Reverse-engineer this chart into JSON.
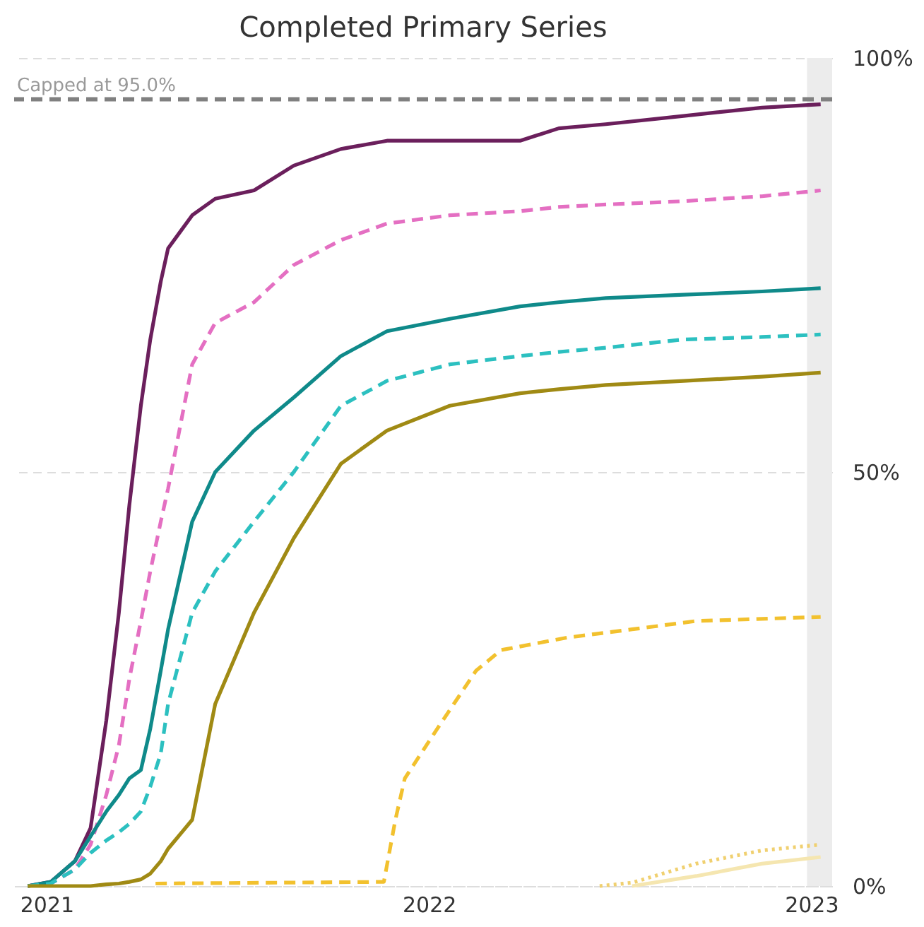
{
  "chart_data": {
    "type": "line",
    "title": "Completed Primary Series",
    "xlim": [
      "2020-12-01",
      "2023-01-21"
    ],
    "xticks": [
      {
        "value": "2021-01-01",
        "label": "2021"
      },
      {
        "value": "2022-01-01",
        "label": "2022"
      },
      {
        "value": "2023-01-01",
        "label": "2023"
      }
    ],
    "ylim": [
      0,
      100
    ],
    "yticks": [
      {
        "value": 0,
        "label": "0%"
      },
      {
        "value": 50,
        "label": "50%"
      },
      {
        "value": 100,
        "label": "100%"
      }
    ],
    "grid": "y",
    "x": [
      "2020-12-14",
      "2021-01-05",
      "2021-01-28",
      "2021-02-12",
      "2021-02-27",
      "2021-03-11",
      "2021-03-21",
      "2021-04-01",
      "2021-04-10",
      "2021-04-20",
      "2021-04-27",
      "2021-05-20",
      "2021-06-11",
      "2021-07-18",
      "2021-08-25",
      "2021-10-09",
      "2021-11-22",
      "2022-01-21",
      "2022-03-29",
      "2022-05-05",
      "2022-06-19",
      "2022-09-01",
      "2022-11-15",
      "2023-01-10"
    ],
    "series": [
      {
        "color": "#6b1f5c",
        "line_style": "solid",
        "values": [
          0,
          0.5,
          3,
          7,
          20,
          33,
          46,
          58,
          66,
          73,
          77,
          81,
          83,
          84,
          87,
          89,
          90,
          90,
          90,
          91.5,
          92,
          93,
          94,
          94.4
        ]
      },
      {
        "color": "#e46fc2",
        "line_style": "dashed",
        "values": [
          0,
          0.3,
          2,
          5,
          11,
          17,
          25,
          32,
          38,
          44,
          48,
          63,
          68,
          70.5,
          75,
          78,
          80,
          81,
          81.5,
          82,
          82.3,
          82.7,
          83.3,
          84
        ]
      },
      {
        "color": "#0f8a8a",
        "line_style": "solid",
        "values": [
          0,
          0.5,
          3,
          6,
          9,
          11,
          13,
          14,
          19,
          26,
          31,
          44,
          50,
          55,
          59,
          64,
          67,
          68.5,
          70,
          70.5,
          71,
          71.4,
          71.8,
          72.2
        ]
      },
      {
        "color": "#2cc0c0",
        "line_style": "dashed",
        "values": [
          0,
          0.3,
          2,
          4,
          5.5,
          6.5,
          7.5,
          9,
          12,
          16,
          22,
          33,
          38,
          44,
          50,
          58,
          61,
          63,
          64,
          64.5,
          65,
          66,
          66.3,
          66.6
        ]
      },
      {
        "color": "#a08a14",
        "line_style": "solid",
        "values": [
          0,
          0,
          0,
          0,
          0.2,
          0.3,
          0.5,
          0.8,
          1.5,
          3,
          4.5,
          8,
          22,
          33,
          42,
          51,
          55,
          58,
          59.5,
          60,
          60.5,
          61,
          61.5,
          62
        ]
      },
      {
        "color": "#f2c12e",
        "line_style": "dashed",
        "x": [
          "2021-04-15",
          "2021-11-19",
          "2021-11-30",
          "2021-12-09",
          "2022-01-09",
          "2022-02-15",
          "2022-03-11",
          "2022-05-13",
          "2022-07-14",
          "2022-09-13",
          "2023-01-10"
        ],
        "values": [
          0.3,
          0.5,
          8,
          13,
          19,
          26,
          28.5,
          30,
          31,
          32,
          32.5
        ]
      },
      {
        "color": "#f0d070",
        "line_style": "dotted",
        "x": [
          "2022-06-13",
          "2022-07-14",
          "2022-09-13",
          "2022-11-15",
          "2023-01-10"
        ],
        "values": [
          0,
          0.4,
          2.7,
          4.3,
          5
        ]
      },
      {
        "color": "#f5e6b0",
        "line_style": "solid",
        "x": [
          "2022-07-14",
          "2022-09-13",
          "2022-11-15",
          "2023-01-10"
        ],
        "values": [
          0,
          1.2,
          2.7,
          3.5
        ]
      }
    ],
    "ref_lines": [
      {
        "axis": "y",
        "value": 95,
        "label": "Capped at 95.0%",
        "color": "#808080",
        "line_style": "dashed"
      }
    ],
    "bands": [
      {
        "axis": "x",
        "from": "2022-12-28",
        "to": "2023-01-21",
        "color": "#ececec"
      }
    ]
  }
}
